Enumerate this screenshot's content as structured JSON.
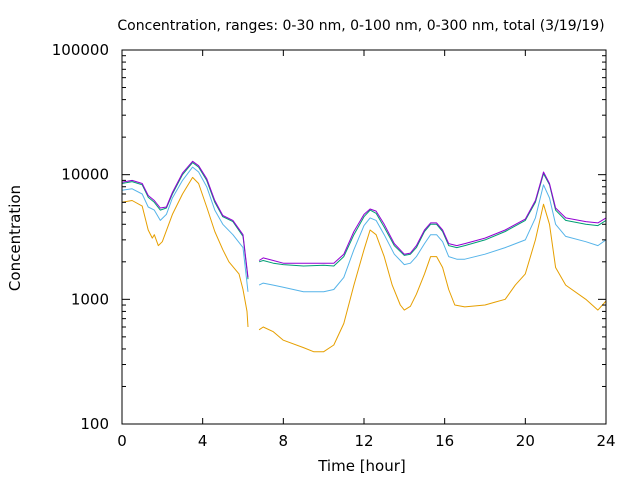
{
  "chart_data": {
    "type": "line",
    "title": "Concentration, ranges: 0-30 nm, 0-100 nm, 0-300 nm, total (3/19/19)",
    "xlabel": "Time [hour]",
    "ylabel": "Concentration",
    "xlim": [
      0,
      24
    ],
    "ylim": [
      100,
      100000
    ],
    "yscale": "log",
    "grid": false,
    "legend": "none",
    "x_ticks": [
      0,
      4,
      8,
      12,
      16,
      20,
      24
    ],
    "x_tick_labels": [
      "0",
      "4",
      "8",
      "12",
      "16",
      "20",
      "24"
    ],
    "y_ticks": [
      100,
      1000,
      10000,
      100000
    ],
    "y_tick_labels": [
      "100",
      "1000",
      "10000",
      "100000"
    ],
    "series": [
      {
        "color": "#e69f00",
        "segments": [
          [
            [
              0,
              6000
            ],
            [
              0.5,
              6200
            ],
            [
              1.0,
              5600
            ],
            [
              1.3,
              3600
            ],
            [
              1.5,
              3100
            ],
            [
              1.6,
              3300
            ],
            [
              1.8,
              2700
            ],
            [
              2.0,
              2900
            ],
            [
              2.5,
              4800
            ],
            [
              3.0,
              7000
            ],
            [
              3.5,
              9500
            ],
            [
              3.8,
              8500
            ],
            [
              4.2,
              5500
            ],
            [
              4.6,
              3500
            ],
            [
              5.0,
              2500
            ],
            [
              5.3,
              2000
            ],
            [
              5.8,
              1600
            ],
            [
              6.0,
              1200
            ],
            [
              6.2,
              800
            ],
            [
              6.25,
              600
            ]
          ],
          [
            [
              6.8,
              570
            ],
            [
              7.0,
              600
            ],
            [
              7.5,
              550
            ],
            [
              8,
              470
            ],
            [
              9,
              410
            ],
            [
              9.5,
              380
            ],
            [
              10,
              380
            ],
            [
              10.5,
              430
            ],
            [
              11,
              640
            ],
            [
              11.5,
              1300
            ],
            [
              12,
              2500
            ],
            [
              12.3,
              3600
            ],
            [
              12.6,
              3300
            ],
            [
              13,
              2200
            ],
            [
              13.4,
              1300
            ],
            [
              13.8,
              900
            ],
            [
              14.0,
              820
            ],
            [
              14.3,
              880
            ],
            [
              14.6,
              1100
            ],
            [
              15,
              1600
            ],
            [
              15.3,
              2200
            ],
            [
              15.6,
              2200
            ],
            [
              15.9,
              1800
            ],
            [
              16.2,
              1200
            ],
            [
              16.5,
              900
            ],
            [
              17,
              870
            ],
            [
              18,
              900
            ],
            [
              18.5,
              950
            ],
            [
              19,
              1000
            ],
            [
              19.5,
              1300
            ],
            [
              20,
              1600
            ],
            [
              20.5,
              3000
            ],
            [
              20.9,
              5800
            ],
            [
              21.2,
              4000
            ],
            [
              21.5,
              1800
            ],
            [
              22,
              1300
            ],
            [
              23,
              1000
            ],
            [
              23.6,
              820
            ],
            [
              24,
              970
            ]
          ]
        ]
      },
      {
        "color": "#56b4e9",
        "segments": [
          [
            [
              0,
              7500
            ],
            [
              0.5,
              7700
            ],
            [
              1.0,
              7000
            ],
            [
              1.3,
              5500
            ],
            [
              1.6,
              5200
            ],
            [
              1.9,
              4300
            ],
            [
              2.2,
              4800
            ],
            [
              2.5,
              6500
            ],
            [
              3.0,
              9000
            ],
            [
              3.5,
              11500
            ],
            [
              3.8,
              10500
            ],
            [
              4.2,
              8000
            ],
            [
              4.6,
              5200
            ],
            [
              5.0,
              4000
            ],
            [
              5.5,
              3300
            ],
            [
              6.0,
              2600
            ],
            [
              6.25,
              1150
            ]
          ],
          [
            [
              6.8,
              1300
            ],
            [
              7.0,
              1350
            ],
            [
              7.5,
              1300
            ],
            [
              8,
              1250
            ],
            [
              9,
              1150
            ],
            [
              10,
              1150
            ],
            [
              10.5,
              1200
            ],
            [
              11,
              1500
            ],
            [
              11.5,
              2500
            ],
            [
              12,
              3900
            ],
            [
              12.3,
              4500
            ],
            [
              12.6,
              4300
            ],
            [
              13,
              3300
            ],
            [
              13.5,
              2300
            ],
            [
              14,
              1900
            ],
            [
              14.3,
              1950
            ],
            [
              14.6,
              2200
            ],
            [
              15,
              2800
            ],
            [
              15.3,
              3300
            ],
            [
              15.6,
              3300
            ],
            [
              15.9,
              2900
            ],
            [
              16.2,
              2200
            ],
            [
              16.6,
              2100
            ],
            [
              17,
              2100
            ],
            [
              18,
              2300
            ],
            [
              19,
              2600
            ],
            [
              20,
              3000
            ],
            [
              20.5,
              4500
            ],
            [
              20.9,
              8300
            ],
            [
              21.2,
              6500
            ],
            [
              21.5,
              4000
            ],
            [
              22,
              3200
            ],
            [
              23,
              2900
            ],
            [
              23.6,
              2700
            ],
            [
              24,
              3000
            ]
          ]
        ]
      },
      {
        "color": "#009e73",
        "segments": [
          [
            [
              0,
              8500
            ],
            [
              0.5,
              8800
            ],
            [
              1.0,
              8300
            ],
            [
              1.3,
              6600
            ],
            [
              1.6,
              6000
            ],
            [
              1.9,
              5200
            ],
            [
              2.2,
              5400
            ],
            [
              2.5,
              7000
            ],
            [
              3.0,
              10000
            ],
            [
              3.5,
              12500
            ],
            [
              3.8,
              11500
            ],
            [
              4.2,
              9000
            ],
            [
              4.6,
              6000
            ],
            [
              5.0,
              4600
            ],
            [
              5.5,
              4200
            ],
            [
              6.0,
              3200
            ],
            [
              6.25,
              1450
            ]
          ],
          [
            [
              6.8,
              2000
            ],
            [
              7.0,
              2050
            ],
            [
              7.5,
              1950
            ],
            [
              8,
              1900
            ],
            [
              9,
              1850
            ],
            [
              10,
              1880
            ],
            [
              10.5,
              1850
            ],
            [
              11,
              2200
            ],
            [
              11.5,
              3300
            ],
            [
              12,
              4600
            ],
            [
              12.3,
              5200
            ],
            [
              12.6,
              4900
            ],
            [
              13,
              3800
            ],
            [
              13.5,
              2700
            ],
            [
              14,
              2250
            ],
            [
              14.3,
              2300
            ],
            [
              14.6,
              2600
            ],
            [
              15,
              3500
            ],
            [
              15.3,
              4000
            ],
            [
              15.6,
              4000
            ],
            [
              15.9,
              3500
            ],
            [
              16.2,
              2700
            ],
            [
              16.6,
              2600
            ],
            [
              17,
              2700
            ],
            [
              18,
              3000
            ],
            [
              19,
              3500
            ],
            [
              20,
              4300
            ],
            [
              20.5,
              6000
            ],
            [
              20.9,
              10200
            ],
            [
              21.2,
              8300
            ],
            [
              21.5,
              5200
            ],
            [
              22,
              4300
            ],
            [
              23,
              4000
            ],
            [
              23.6,
              3900
            ],
            [
              24,
              4300
            ]
          ]
        ]
      },
      {
        "color": "#9400d3",
        "segments": [
          [
            [
              0,
              8700
            ],
            [
              0.5,
              9000
            ],
            [
              1.0,
              8500
            ],
            [
              1.3,
              6800
            ],
            [
              1.6,
              6200
            ],
            [
              1.9,
              5400
            ],
            [
              2.2,
              5500
            ],
            [
              2.5,
              7200
            ],
            [
              3.0,
              10300
            ],
            [
              3.5,
              12800
            ],
            [
              3.8,
              11800
            ],
            [
              4.2,
              9300
            ],
            [
              4.6,
              6200
            ],
            [
              5.0,
              4700
            ],
            [
              5.5,
              4300
            ],
            [
              6.0,
              3300
            ],
            [
              6.25,
              1500
            ]
          ],
          [
            [
              6.8,
              2050
            ],
            [
              7.0,
              2150
            ],
            [
              7.5,
              2050
            ],
            [
              8,
              1950
            ],
            [
              9,
              1950
            ],
            [
              10,
              1950
            ],
            [
              10.5,
              1950
            ],
            [
              11,
              2300
            ],
            [
              11.5,
              3500
            ],
            [
              12,
              4800
            ],
            [
              12.3,
              5300
            ],
            [
              12.6,
              5100
            ],
            [
              13,
              4000
            ],
            [
              13.5,
              2800
            ],
            [
              14,
              2300
            ],
            [
              14.3,
              2350
            ],
            [
              14.6,
              2700
            ],
            [
              15,
              3600
            ],
            [
              15.3,
              4100
            ],
            [
              15.6,
              4100
            ],
            [
              15.9,
              3600
            ],
            [
              16.2,
              2800
            ],
            [
              16.6,
              2700
            ],
            [
              17,
              2800
            ],
            [
              18,
              3100
            ],
            [
              19,
              3600
            ],
            [
              20,
              4400
            ],
            [
              20.5,
              6200
            ],
            [
              20.9,
              10500
            ],
            [
              21.2,
              8500
            ],
            [
              21.5,
              5400
            ],
            [
              22,
              4500
            ],
            [
              23,
              4200
            ],
            [
              23.6,
              4100
            ],
            [
              24,
              4500
            ]
          ]
        ]
      }
    ]
  }
}
